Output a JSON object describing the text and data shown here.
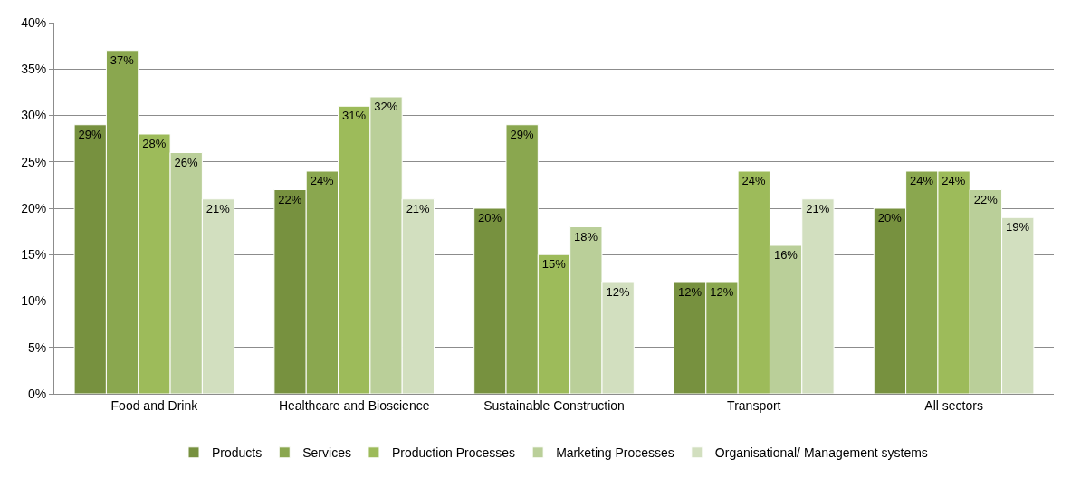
{
  "chart_data": {
    "type": "bar",
    "categories": [
      "Food and Drink",
      "Healthcare and Bioscience",
      "Sustainable Construction",
      "Transport",
      "All sectors"
    ],
    "series": [
      {
        "name": "Products",
        "color": "#77913f",
        "values": [
          29,
          22,
          20,
          12,
          20
        ],
        "value_labels": [
          "29%",
          "22%",
          "20%",
          "12%",
          "20%"
        ]
      },
      {
        "name": "Services",
        "color": "#8aa74f",
        "values": [
          37,
          24,
          29,
          12,
          24
        ],
        "value_labels": [
          "37%",
          "24%",
          "29%",
          "12%",
          "24%"
        ]
      },
      {
        "name": "Production Processes",
        "color": "#9dbb5a",
        "values": [
          28,
          31,
          15,
          24,
          24
        ],
        "value_labels": [
          "28%",
          "31%",
          "15%",
          "24%",
          "24%"
        ]
      },
      {
        "name": "Marketing Processes",
        "color": "#bacf99",
        "values": [
          26,
          32,
          18,
          16,
          22
        ],
        "value_labels": [
          "26%",
          "32%",
          "18%",
          "16%",
          "22%"
        ]
      },
      {
        "name": "Organisational/ Management systems",
        "color": "#d2dfbf",
        "values": [
          21,
          21,
          12,
          21,
          19
        ],
        "value_labels": [
          "21%",
          "21%",
          "12%",
          "21%",
          "19%"
        ]
      }
    ],
    "ylim": [
      0,
      40
    ],
    "yticks": [
      {
        "value": 0,
        "label": "0%"
      },
      {
        "value": 5,
        "label": "5%"
      },
      {
        "value": 10,
        "label": "10%"
      },
      {
        "value": 15,
        "label": "15%"
      },
      {
        "value": 20,
        "label": "20%"
      },
      {
        "value": 25,
        "label": "25%"
      },
      {
        "value": 30,
        "label": "30%"
      },
      {
        "value": 35,
        "label": "35%"
      },
      {
        "value": 40,
        "label": "40%"
      }
    ],
    "grid": "y",
    "legend": "bottom"
  }
}
